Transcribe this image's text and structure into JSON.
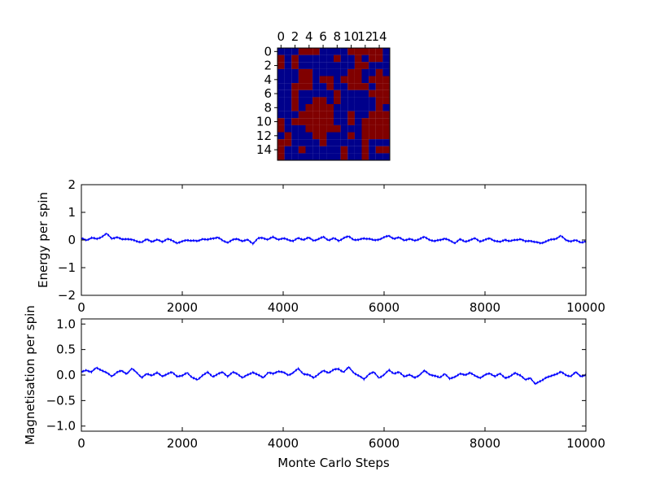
{
  "figure": {
    "background": "#ffffff",
    "axis_color": "#000000",
    "line_color": "#0000ff",
    "spin_colors": {
      "down": "#00008b",
      "up": "#800000"
    }
  },
  "chart_data": [
    {
      "type": "heatmap",
      "title": "",
      "xlabel": "",
      "ylabel": "",
      "x_ticks": [
        "0",
        "2",
        "4",
        "6",
        "8",
        "10",
        "12",
        "14"
      ],
      "y_ticks": [
        "0",
        "2",
        "4",
        "6",
        "8",
        "10",
        "12",
        "14"
      ],
      "x_ticks_position": "top",
      "grid": false,
      "values": [
        [
          0,
          0,
          0,
          1,
          1,
          1,
          0,
          0,
          0,
          0,
          1,
          1,
          1,
          1,
          1,
          0
        ],
        [
          1,
          0,
          1,
          0,
          0,
          0,
          0,
          0,
          1,
          0,
          0,
          1,
          0,
          1,
          1,
          0
        ],
        [
          1,
          0,
          1,
          0,
          0,
          0,
          0,
          0,
          0,
          0,
          0,
          1,
          1,
          0,
          0,
          0
        ],
        [
          0,
          0,
          0,
          1,
          1,
          0,
          0,
          0,
          0,
          0,
          1,
          1,
          0,
          0,
          1,
          0
        ],
        [
          0,
          0,
          0,
          1,
          1,
          0,
          1,
          1,
          0,
          1,
          1,
          1,
          0,
          1,
          1,
          1
        ],
        [
          0,
          0,
          1,
          1,
          1,
          0,
          0,
          1,
          0,
          0,
          1,
          1,
          1,
          0,
          1,
          1
        ],
        [
          0,
          0,
          1,
          0,
          0,
          0,
          0,
          0,
          1,
          0,
          0,
          0,
          0,
          1,
          1,
          1
        ],
        [
          0,
          0,
          1,
          0,
          0,
          1,
          1,
          0,
          1,
          0,
          0,
          0,
          0,
          0,
          1,
          1
        ],
        [
          0,
          0,
          1,
          0,
          1,
          1,
          1,
          1,
          0,
          0,
          0,
          0,
          0,
          0,
          1,
          0
        ],
        [
          0,
          0,
          0,
          1,
          1,
          1,
          1,
          1,
          0,
          0,
          1,
          0,
          0,
          1,
          1,
          1
        ],
        [
          1,
          0,
          1,
          1,
          1,
          1,
          1,
          1,
          0,
          0,
          1,
          0,
          1,
          1,
          1,
          1
        ],
        [
          1,
          0,
          0,
          0,
          1,
          1,
          1,
          1,
          1,
          0,
          0,
          0,
          1,
          1,
          1,
          1
        ],
        [
          0,
          1,
          0,
          0,
          0,
          1,
          1,
          0,
          0,
          0,
          1,
          0,
          1,
          1,
          1,
          1
        ],
        [
          1,
          1,
          0,
          0,
          0,
          0,
          1,
          0,
          0,
          0,
          0,
          0,
          1,
          0,
          0,
          0
        ],
        [
          1,
          0,
          0,
          1,
          0,
          0,
          0,
          0,
          0,
          1,
          0,
          0,
          1,
          0,
          1,
          1
        ],
        [
          1,
          0,
          0,
          0,
          0,
          0,
          0,
          0,
          0,
          1,
          0,
          0,
          1,
          0,
          0,
          0
        ]
      ]
    },
    {
      "type": "line",
      "title": "",
      "xlabel": "",
      "ylabel": "Energy per spin",
      "xlim": [
        0,
        10000
      ],
      "ylim": [
        -2,
        2
      ],
      "x_ticks": [
        "0",
        "2000",
        "4000",
        "6000",
        "8000",
        "10000"
      ],
      "y_ticks": [
        "−2",
        "−1",
        "0",
        "1",
        "2"
      ],
      "y_tick_values": [
        -2,
        -1,
        0,
        1,
        2
      ],
      "grid": false,
      "series": [
        {
          "x": [
            0,
            100,
            200,
            300,
            400,
            500,
            600,
            700,
            800,
            900,
            1000,
            1100,
            1200,
            1300,
            1400,
            1500,
            1600,
            1700,
            1800,
            1900,
            2000,
            2100,
            2200,
            2300,
            2400,
            2500,
            2600,
            2700,
            2800,
            2900,
            3000,
            3100,
            3200,
            3300,
            3400,
            3500,
            3600,
            3700,
            3800,
            3900,
            4000,
            4100,
            4200,
            4300,
            4400,
            4500,
            4600,
            4700,
            4800,
            4900,
            5000,
            5100,
            5200,
            5300,
            5400,
            5500,
            5600,
            5700,
            5800,
            5900,
            6000,
            6100,
            6200,
            6300,
            6400,
            6500,
            6600,
            6700,
            6800,
            6900,
            7000,
            7100,
            7200,
            7300,
            7400,
            7500,
            7600,
            7700,
            7800,
            7900,
            8000,
            8100,
            8200,
            8300,
            8400,
            8500,
            8600,
            8700,
            8800,
            8900,
            9000,
            9100,
            9200,
            9300,
            9400,
            9500,
            9600,
            9700,
            9800,
            9900,
            10000
          ],
          "values": [
            0.05,
            0.0,
            0.08,
            0.03,
            0.12,
            0.22,
            0.06,
            0.1,
            0.02,
            0.05,
            0.0,
            -0.04,
            -0.08,
            0.02,
            -0.05,
            0.0,
            -0.06,
            0.04,
            -0.03,
            -0.1,
            -0.06,
            0.0,
            -0.02,
            -0.05,
            0.05,
            0.0,
            0.06,
            0.1,
            -0.03,
            -0.08,
            0.0,
            0.04,
            -0.04,
            0.0,
            -0.12,
            0.05,
            0.08,
            0.02,
            0.1,
            0.03,
            0.05,
            0.01,
            -0.03,
            0.06,
            0.02,
            0.08,
            -0.02,
            0.04,
            0.1,
            0.0,
            0.06,
            -0.03,
            0.08,
            0.12,
            0.02,
            0.0,
            0.06,
            0.05,
            -0.02,
            0.03,
            0.09,
            0.15,
            0.05,
            0.08,
            0.0,
            0.03,
            -0.02,
            0.04,
            0.1,
            0.02,
            -0.05,
            0.0,
            0.06,
            -0.03,
            -0.1,
            0.02,
            -0.06,
            0.0,
            0.05,
            -0.04,
            0.0,
            0.06,
            -0.03,
            -0.08,
            0.02,
            -0.05,
            0.0,
            0.04,
            -0.06,
            -0.02,
            -0.08,
            -0.12,
            -0.05,
            0.0,
            0.05,
            0.15,
            0.0,
            -0.04,
            -0.02,
            -0.08,
            -0.05
          ]
        }
      ]
    },
    {
      "type": "line",
      "title": "",
      "xlabel": "Monte Carlo Steps",
      "ylabel": "Magnetisation per spin",
      "xlim": [
        0,
        10000
      ],
      "ylim": [
        -1.1,
        1.1
      ],
      "x_ticks": [
        "0",
        "2000",
        "4000",
        "6000",
        "8000",
        "10000"
      ],
      "y_ticks": [
        "−1.0",
        "−0.5",
        "0.0",
        "0.5",
        "1.0"
      ],
      "y_tick_values": [
        -1.0,
        -0.5,
        0.0,
        0.5,
        1.0
      ],
      "grid": false,
      "series": [
        {
          "x": [
            0,
            100,
            200,
            300,
            400,
            500,
            600,
            700,
            800,
            900,
            1000,
            1100,
            1200,
            1300,
            1400,
            1500,
            1600,
            1700,
            1800,
            1900,
            2000,
            2100,
            2200,
            2300,
            2400,
            2500,
            2600,
            2700,
            2800,
            2900,
            3000,
            3100,
            3200,
            3300,
            3400,
            3500,
            3600,
            3700,
            3800,
            3900,
            4000,
            4100,
            4200,
            4300,
            4400,
            4500,
            4600,
            4700,
            4800,
            4900,
            5000,
            5100,
            5200,
            5300,
            5400,
            5500,
            5600,
            5700,
            5800,
            5900,
            6000,
            6100,
            6200,
            6300,
            6400,
            6500,
            6600,
            6700,
            6800,
            6900,
            7000,
            7100,
            7200,
            7300,
            7400,
            7500,
            7600,
            7700,
            7800,
            7900,
            8000,
            8100,
            8200,
            8300,
            8400,
            8500,
            8600,
            8700,
            8800,
            8900,
            9000,
            9100,
            9200,
            9300,
            9400,
            9500,
            9600,
            9700,
            9800,
            9900,
            10000
          ],
          "values": [
            0.05,
            0.1,
            0.06,
            0.14,
            0.1,
            0.04,
            -0.02,
            0.05,
            0.08,
            0.03,
            0.12,
            0.05,
            -0.05,
            0.02,
            0.0,
            0.04,
            -0.02,
            0.02,
            0.05,
            -0.02,
            -0.02,
            0.05,
            -0.05,
            -0.1,
            0.0,
            0.05,
            -0.03,
            0.02,
            0.05,
            -0.02,
            0.05,
            0.02,
            -0.05,
            0.0,
            0.06,
            0.0,
            -0.05,
            0.05,
            0.02,
            0.08,
            0.05,
            0.0,
            0.05,
            0.12,
            0.03,
            0.0,
            -0.05,
            0.02,
            0.08,
            0.05,
            0.1,
            0.12,
            0.06,
            0.15,
            0.05,
            -0.02,
            -0.08,
            0.02,
            0.05,
            -0.05,
            0.0,
            0.1,
            0.03,
            0.05,
            -0.02,
            0.0,
            -0.05,
            0.0,
            0.08,
            0.02,
            -0.02,
            -0.05,
            0.03,
            -0.08,
            -0.03,
            0.02,
            0.0,
            0.05,
            -0.02,
            -0.05,
            0.0,
            0.03,
            -0.02,
            0.02,
            -0.05,
            -0.03,
            0.04,
            0.0,
            -0.1,
            -0.05,
            -0.18,
            -0.12,
            -0.05,
            -0.03,
            0.02,
            0.06,
            0.0,
            -0.02,
            0.05,
            -0.02,
            0.0
          ]
        }
      ]
    }
  ]
}
